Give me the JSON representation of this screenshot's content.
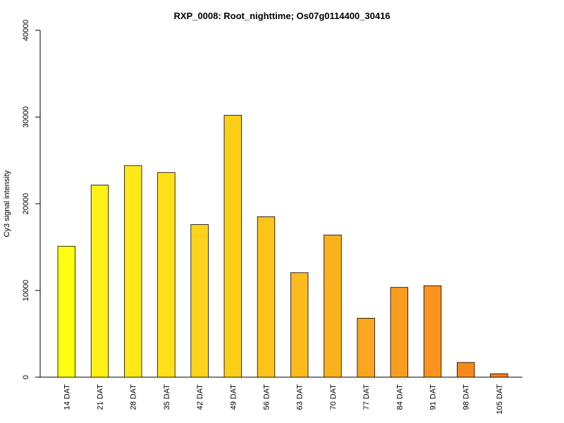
{
  "chart_data": {
    "type": "bar",
    "title": "RXP_0008: Root_nighttime; Os07g0114400_30416",
    "xlabel": "",
    "ylabel": "Cy3 signal intensity",
    "ylim": [
      0,
      40000
    ],
    "yticks": [
      0,
      10000,
      20000,
      30000,
      40000
    ],
    "grid": false,
    "categories": [
      "14 DAT",
      "21 DAT",
      "28 DAT",
      "35 DAT",
      "42 DAT",
      "49 DAT",
      "56 DAT",
      "63 DAT",
      "70 DAT",
      "77 DAT",
      "84 DAT",
      "91 DAT",
      "98 DAT",
      "105 DAT"
    ],
    "values": [
      15100,
      22150,
      24400,
      23600,
      17600,
      30200,
      18500,
      12050,
      16400,
      6800,
      10350,
      10550,
      1700,
      400
    ],
    "colors": [
      "#FFFF14",
      "#FFF015",
      "#FFE817",
      "#FFE018",
      "#FDD41A",
      "#FDCF18",
      "#FCC41B",
      "#FCBA1C",
      "#FBB01D",
      "#FAA61E",
      "#F99D1F",
      "#F89320",
      "#F68A1C",
      "#F27F1B"
    ]
  }
}
